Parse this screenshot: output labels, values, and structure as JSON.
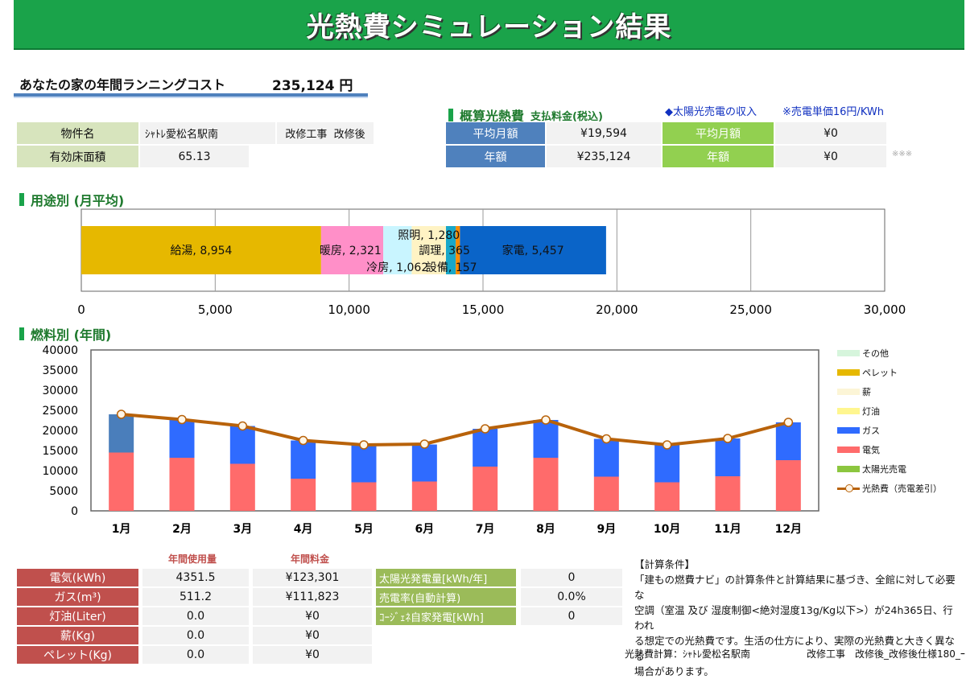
{
  "title": "光熱費シミュレーション結果",
  "running_cost": {
    "label": "あなたの家の年間ランニングコスト",
    "value": "235,124 円"
  },
  "property": {
    "name_label": "物件名",
    "name_value": "ｼｬﾄﾚ愛松名駅南",
    "renovation_label": "改修工事",
    "renovation_value": "改修後",
    "area_label": "有効床面積",
    "area_value": "65.13"
  },
  "estimate": {
    "heading": "概算光熱費",
    "subheading": "支払料金(税込)",
    "monthly_label": "平均月額",
    "monthly_value": "¥19,594",
    "annual_label": "年額",
    "annual_value": "¥235,124"
  },
  "solar": {
    "heading": "◆太陽光売電の収入",
    "note": "※売電単価16円/KWh",
    "monthly_label": "平均月額",
    "monthly_value": "¥0",
    "annual_label": "年額",
    "annual_value": "¥0",
    "mark": "※※※"
  },
  "usage_section": "用途別 (月平均)",
  "fuel_section": "燃料別 (年間)",
  "chart_data": [
    {
      "type": "bar",
      "orientation": "horizontal-stacked",
      "title": "用途別 (月平均)",
      "series": [
        {
          "name": "給湯",
          "value": 8954,
          "label": "給湯, 8,954",
          "color": "#e6b800"
        },
        {
          "name": "暖房",
          "value": 2321,
          "label": "暖房, 2,321",
          "color": "#ff8fc8"
        },
        {
          "name": "冷房",
          "value": 1062,
          "label": "冷房, 1,062",
          "color": "#c9f5ff"
        },
        {
          "name": "照明",
          "value": 1280,
          "label": "照明, 1,280",
          "color": "#fff3c4"
        },
        {
          "name": "調理",
          "value": 365,
          "label": "調理, 365",
          "color": "#19a7c9"
        },
        {
          "name": "設備",
          "value": 157,
          "label": "設備, 157",
          "color": "#ff8c00"
        },
        {
          "name": "家電",
          "value": 5457,
          "label": "家電, 5,457",
          "color": "#0a64c8"
        }
      ],
      "xlim": [
        0,
        30000
      ],
      "xticks": [
        "0",
        "5,000",
        "10,000",
        "15,000",
        "20,000",
        "25,000",
        "30,000"
      ],
      "grid": true
    },
    {
      "type": "bar",
      "stacked": true,
      "title": "燃料別 (年間)",
      "categories": [
        "1月",
        "2月",
        "3月",
        "4月",
        "5月",
        "6月",
        "7月",
        "8月",
        "9月",
        "10月",
        "11月",
        "12月"
      ],
      "series": [
        {
          "name": "電気",
          "color": "#ff6b6b",
          "values": [
            14500,
            13200,
            11700,
            8000,
            7100,
            7300,
            11000,
            13200,
            8500,
            7100,
            8600,
            12600
          ]
        },
        {
          "name": "ガス",
          "color": "#2f6bff",
          "values": [
            9500,
            9500,
            9400,
            9500,
            9300,
            9200,
            9400,
            9400,
            9400,
            9300,
            9400,
            9400
          ]
        },
        {
          "name": "光熱費（売電差引）",
          "type": "line",
          "color": "#b8620a",
          "values": [
            24000,
            22700,
            21100,
            17500,
            16400,
            16600,
            20400,
            22600,
            17900,
            16400,
            18000,
            22000
          ]
        }
      ],
      "first_month_gas_color": "#4a7ebb",
      "ylim": [
        0,
        40000
      ],
      "yticks": [
        "0",
        "5000",
        "10000",
        "15000",
        "20000",
        "25000",
        "30000",
        "35000",
        "40000"
      ],
      "legend": {
        "placement": "right",
        "items": [
          {
            "name": "その他",
            "color": "#d6f5dc",
            "kind": "box"
          },
          {
            "name": "ペレット",
            "color": "#e6b800",
            "kind": "box"
          },
          {
            "name": "薪",
            "color": "#fcf5d6",
            "kind": "box"
          },
          {
            "name": "灯油",
            "color": "#fff68f",
            "kind": "box"
          },
          {
            "name": "ガス",
            "color": "#2f6bff",
            "kind": "box"
          },
          {
            "name": "電気",
            "color": "#ff6b6b",
            "kind": "box"
          },
          {
            "name": "太陽光売電",
            "color": "#8cc63f",
            "kind": "box"
          },
          {
            "name": "光熱費（売電差引）",
            "color": "#b8620a",
            "kind": "line"
          }
        ]
      },
      "grid": false
    }
  ],
  "annual_table": {
    "usage_header": "年間使用量",
    "cost_header": "年間料金",
    "rows": [
      {
        "label": "電気(kWh)",
        "usage": "4351.5",
        "cost": "¥123,301"
      },
      {
        "label": "ガス(m³)",
        "usage": "511.2",
        "cost": "¥111,823"
      },
      {
        "label": "灯油(Liter)",
        "usage": "0.0",
        "cost": "¥0"
      },
      {
        "label": "薪(Kg)",
        "usage": "0.0",
        "cost": "¥0"
      },
      {
        "label": "ペレット(Kg)",
        "usage": "0.0",
        "cost": "¥0"
      }
    ]
  },
  "solar_table": [
    {
      "label": "太陽光発電量[kWh/年]",
      "value": "0"
    },
    {
      "label": "売電率(自動計算)",
      "value": "0.0%"
    },
    {
      "label": "ｺｰｼﾞｪﾈ自家発電[kWh]",
      "value": "0"
    }
  ],
  "conditions": {
    "heading": "【計算条件】",
    "lines": [
      "「建もの燃費ナビ」の計算条件と計算結果に基づき、全館に対して必要な",
      "空調（室温 及び 湿度制御<絶対湿度13g/Kg以下>）が24h365日、行われ",
      "る想定での光熱費です。生活の仕方により、実際の光熱費と大きく異なる",
      "場合があります。"
    ]
  },
  "footer": {
    "calc_label": "光熱費計算：ｼｬﾄﾚ愛松名駅南",
    "spec_label": "改修工事　改修後_改修後仕様180_ｰ"
  }
}
